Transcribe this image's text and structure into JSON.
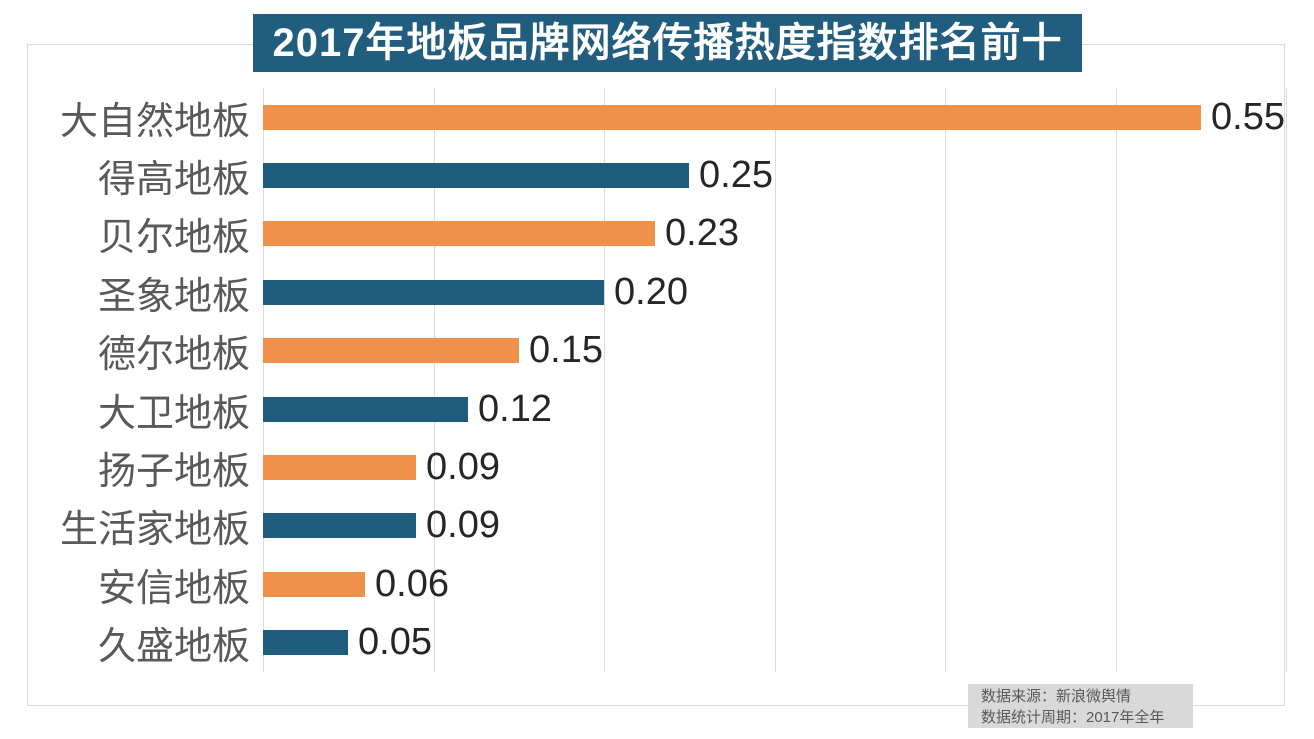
{
  "title": "2017年地板品牌网络传播热度指数排名前十",
  "chart_data": {
    "type": "bar",
    "orientation": "horizontal",
    "title": "2017年地板品牌网络传播热度指数排名前十",
    "categories": [
      "大自然地板",
      "得高地板",
      "贝尔地板",
      "圣象地板",
      "德尔地板",
      "大卫地板",
      "扬子地板",
      "生活家地板",
      "安信地板",
      "久盛地板"
    ],
    "values": [
      0.55,
      0.25,
      0.23,
      0.2,
      0.15,
      0.12,
      0.09,
      0.09,
      0.06,
      0.05
    ],
    "value_labels": [
      "0.55",
      "0.25",
      "0.23",
      "0.20",
      "0.15",
      "0.12",
      "0.09",
      "0.09",
      "0.06",
      "0.05"
    ],
    "xlim": [
      0,
      0.6
    ],
    "gridlines": [
      0,
      0.1,
      0.2,
      0.3,
      0.4,
      0.5,
      0.6
    ],
    "grid": "vertical lines on",
    "legend_position": "none",
    "xlabel": "",
    "ylabel": ""
  },
  "footer": {
    "source": "数据来源：新浪微舆情",
    "period": "数据统计周期：2017年全年"
  },
  "colors": {
    "title_bg": "#205D7E",
    "title_text": "#FFFFFF",
    "bar_orange": "#F0914B",
    "bar_blue": "#1F5B7D",
    "grid": "#DCDCDC",
    "container_border": "#D9D9D9",
    "category_label": "#595959",
    "value_label": "#262626",
    "footer_bg": "#D9D9D9",
    "footer_text": "#595959"
  }
}
